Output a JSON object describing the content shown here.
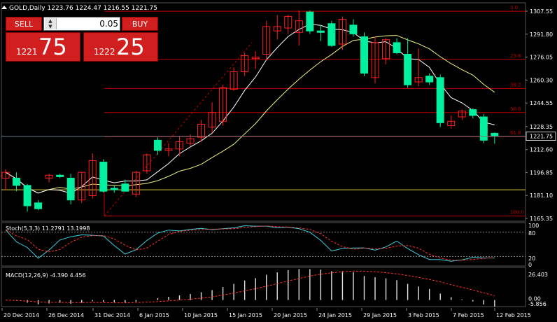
{
  "header": {
    "title": "GOLD,Daily  1223.76 1224.47 1216.55 1221.75"
  },
  "trade": {
    "sell_label": "SELL",
    "buy_label": "BUY",
    "lot_value": "0.05",
    "sell_small": "1221",
    "sell_big": "75",
    "buy_small": "1222",
    "buy_big": "25"
  },
  "stoch": {
    "label": "Stoch(5,3,3) 11.2791 13.1998",
    "scale": [
      "100",
      "80",
      "20",
      "0"
    ]
  },
  "macd": {
    "label": "MACD(12,26,9) -4.390 4.456",
    "scale": [
      "26.403",
      "0.00",
      "-5.856"
    ]
  },
  "colors": {
    "up": "#ff2020",
    "down": "#00f0a0",
    "grid": "#555555",
    "fib": "#c00000",
    "ma_fast": "#ffffff",
    "ma_slow": "#f0f080",
    "level": "#e0d040"
  },
  "chart_data": {
    "type": "candlestick",
    "symbol": "GOLD",
    "timeframe": "Daily",
    "last_price": "1221.75",
    "y_ticks": [
      "1307.55",
      "1291.80",
      "1276.05",
      "1260.30",
      "1244.55",
      "1228.35",
      "1212.60",
      "1196.85",
      "1181.10",
      "1165.35"
    ],
    "x_ticks": [
      "20 Dec 2014",
      "26 Dec 2014",
      "31 Dec 2014",
      "6 Jan 2015",
      "10 Jan 2015",
      "15 Jan 2015",
      "20 Jan 2015",
      "24 Jan 2015",
      "29 Jan 2015",
      "3 Feb 2015",
      "7 Feb 2015",
      "12 Feb 2015"
    ],
    "fib_levels": [
      {
        "label": "0.0",
        "value": 1307.5
      },
      {
        "label": "23.6",
        "value": 1274.5
      },
      {
        "label": "38.2",
        "value": 1254.5
      },
      {
        "label": "50.0",
        "value": 1238.0
      },
      {
        "label": "61.8",
        "value": 1221.5
      },
      {
        "label": "100.0",
        "value": 1167.0
      }
    ],
    "candles": [
      {
        "o": 1193,
        "h": 1199,
        "l": 1185,
        "c": 1197
      },
      {
        "o": 1193,
        "h": 1197,
        "l": 1184,
        "c": 1188
      },
      {
        "o": 1188,
        "h": 1189,
        "l": 1170,
        "c": 1174
      },
      {
        "o": 1176,
        "h": 1178,
        "l": 1171,
        "c": 1172
      },
      {
        "o": 1193,
        "h": 1196,
        "l": 1190,
        "c": 1195
      },
      {
        "o": 1195,
        "h": 1196,
        "l": 1193,
        "c": 1194
      },
      {
        "o": 1193,
        "h": 1196,
        "l": 1175,
        "c": 1178
      },
      {
        "o": 1178,
        "h": 1197,
        "l": 1176,
        "c": 1197
      },
      {
        "o": 1181,
        "h": 1210,
        "l": 1179,
        "c": 1205
      },
      {
        "o": 1204,
        "h": 1206,
        "l": 1183,
        "c": 1184
      },
      {
        "o": 1186,
        "h": 1188,
        "l": 1183,
        "c": 1185
      },
      {
        "o": 1189,
        "h": 1192,
        "l": 1185,
        "c": 1184
      },
      {
        "o": 1182,
        "h": 1198,
        "l": 1180,
        "c": 1197
      },
      {
        "o": 1198,
        "h": 1210,
        "l": 1196,
        "c": 1209
      },
      {
        "o": 1219,
        "h": 1221,
        "l": 1209,
        "c": 1212
      },
      {
        "o": 1212,
        "h": 1217,
        "l": 1208,
        "c": 1213
      },
      {
        "o": 1213,
        "h": 1222,
        "l": 1208,
        "c": 1218
      },
      {
        "o": 1217,
        "h": 1223,
        "l": 1215,
        "c": 1220
      },
      {
        "o": 1221,
        "h": 1233,
        "l": 1218,
        "c": 1230
      },
      {
        "o": 1228,
        "h": 1245,
        "l": 1224,
        "c": 1238
      },
      {
        "o": 1232,
        "h": 1257,
        "l": 1229,
        "c": 1255
      },
      {
        "o": 1254,
        "h": 1269,
        "l": 1253,
        "c": 1266
      },
      {
        "o": 1266,
        "h": 1279,
        "l": 1263,
        "c": 1277
      },
      {
        "o": 1275,
        "h": 1280,
        "l": 1268,
        "c": 1276
      },
      {
        "o": 1278,
        "h": 1301,
        "l": 1274,
        "c": 1297
      },
      {
        "o": 1294,
        "h": 1305,
        "l": 1288,
        "c": 1297
      },
      {
        "o": 1296,
        "h": 1305,
        "l": 1292,
        "c": 1304
      },
      {
        "o": 1293,
        "h": 1308,
        "l": 1284,
        "c": 1301
      },
      {
        "o": 1307,
        "h": 1308,
        "l": 1292,
        "c": 1294
      },
      {
        "o": 1294,
        "h": 1298,
        "l": 1287,
        "c": 1293
      },
      {
        "o": 1299,
        "h": 1301,
        "l": 1283,
        "c": 1284
      },
      {
        "o": 1285,
        "h": 1304,
        "l": 1281,
        "c": 1302
      },
      {
        "o": 1298,
        "h": 1302,
        "l": 1290,
        "c": 1292
      },
      {
        "o": 1290,
        "h": 1293,
        "l": 1263,
        "c": 1265
      },
      {
        "o": 1262,
        "h": 1290,
        "l": 1258,
        "c": 1286
      },
      {
        "o": 1275,
        "h": 1289,
        "l": 1271,
        "c": 1288
      },
      {
        "o": 1286,
        "h": 1289,
        "l": 1278,
        "c": 1279
      },
      {
        "o": 1278,
        "h": 1289,
        "l": 1255,
        "c": 1257
      },
      {
        "o": 1259,
        "h": 1282,
        "l": 1256,
        "c": 1262
      },
      {
        "o": 1263,
        "h": 1265,
        "l": 1257,
        "c": 1259
      },
      {
        "o": 1262,
        "h": 1264,
        "l": 1228,
        "c": 1231
      },
      {
        "o": 1229,
        "h": 1236,
        "l": 1227,
        "c": 1232
      },
      {
        "o": 1235,
        "h": 1240,
        "l": 1233,
        "c": 1239
      },
      {
        "o": 1240,
        "h": 1241,
        "l": 1234,
        "c": 1236
      },
      {
        "o": 1235,
        "h": 1237,
        "l": 1217,
        "c": 1219
      },
      {
        "o": 1223.76,
        "h": 1224.47,
        "l": 1216.55,
        "c": 1221.75
      }
    ]
  }
}
